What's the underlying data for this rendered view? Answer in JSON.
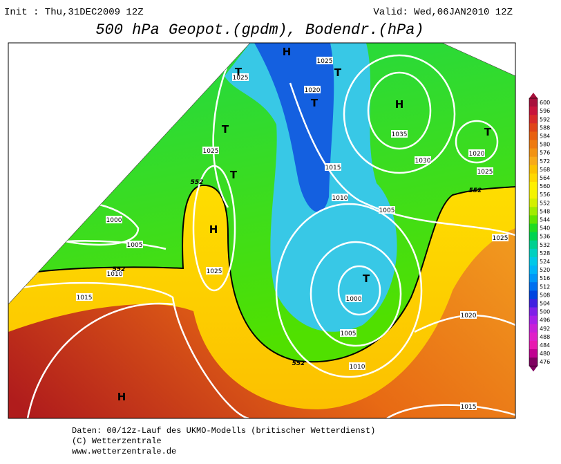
{
  "header": {
    "init": "Init : Thu,31DEC2009 12Z",
    "valid": "Valid: Wed,06JAN2010 12Z",
    "title": "500 hPa Geopot.(gpdm), Bodendr.(hPa)"
  },
  "map": {
    "pressure_labels": [
      "1025",
      "1025",
      "1020",
      "1035",
      "1030",
      "1020",
      "1025",
      "1025",
      "1015",
      "1010",
      "1005",
      "1000",
      "1005",
      "1010",
      "1025",
      "1015",
      "1000",
      "1005",
      "1010",
      "1020",
      "1025",
      "1015"
    ],
    "centers": [
      "H",
      "T",
      "T",
      "T",
      "H",
      "T",
      "T",
      "T",
      "H",
      "T",
      "H"
    ],
    "contour_labels": [
      "552",
      "552",
      "552",
      "552"
    ]
  },
  "colorbar": {
    "ticks": [
      600,
      596,
      592,
      588,
      584,
      580,
      576,
      572,
      568,
      564,
      560,
      556,
      552,
      548,
      544,
      540,
      536,
      532,
      528,
      524,
      520,
      516,
      512,
      508,
      504,
      500,
      496,
      492,
      488,
      484,
      480,
      476
    ],
    "colors": [
      "#a8103c",
      "#c8143c",
      "#d82a2a",
      "#e04418",
      "#e86010",
      "#ee7a10",
      "#f29212",
      "#f8aa18",
      "#fcc200",
      "#ffd800",
      "#fff000",
      "#f4f400",
      "#d4f000",
      "#a0ec00",
      "#60e400",
      "#20dc20",
      "#00d450",
      "#00d090",
      "#00d0c0",
      "#00c8e8",
      "#00b4f8",
      "#0096f8",
      "#0070f0",
      "#0044e0",
      "#4020e0",
      "#8020e8",
      "#a820e8",
      "#c820d8",
      "#e020c8",
      "#e818b0",
      "#c00090",
      "#800060"
    ]
  },
  "footer": {
    "lines": [
      "Daten: 00/12z-Lauf des UKMO-Modells (britischer Wetterdienst)",
      "(C) Wetterzentrale",
      "www.wetterzentrale.de"
    ]
  }
}
